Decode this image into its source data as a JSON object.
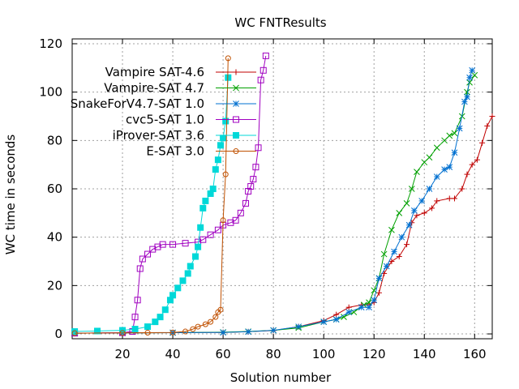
{
  "chart_data": {
    "type": "line",
    "title": "WC FNTResults",
    "xlabel": "Solution number",
    "ylabel": "WC time in seconds",
    "xlim": [
      0,
      167
    ],
    "ylim": [
      -2,
      122
    ],
    "xticks": [
      20,
      40,
      60,
      80,
      100,
      120,
      140,
      160
    ],
    "yticks": [
      0,
      20,
      40,
      60,
      80,
      100,
      120
    ],
    "grid": true,
    "legend_position": "top-left",
    "series": [
      {
        "name": "Vampire SAT-4.6",
        "color": "#c00000",
        "marker": "plus",
        "points": [
          [
            1,
            0.3
          ],
          [
            20,
            0.4
          ],
          [
            40,
            0.5
          ],
          [
            60,
            0.6
          ],
          [
            70,
            0.9
          ],
          [
            80,
            1.4
          ],
          [
            90,
            3
          ],
          [
            100,
            5.5
          ],
          [
            105,
            8
          ],
          [
            110,
            11
          ],
          [
            115,
            12
          ],
          [
            118,
            12
          ],
          [
            120,
            13
          ],
          [
            122,
            17
          ],
          [
            124,
            25
          ],
          [
            127,
            30
          ],
          [
            130,
            32
          ],
          [
            133,
            37
          ],
          [
            135,
            46
          ],
          [
            137,
            49
          ],
          [
            140,
            50
          ],
          [
            143,
            52
          ],
          [
            145,
            55
          ],
          [
            150,
            56
          ],
          [
            152,
            56
          ],
          [
            155,
            60
          ],
          [
            157,
            66
          ],
          [
            159,
            70
          ],
          [
            161,
            72
          ],
          [
            163,
            79
          ],
          [
            165,
            86
          ],
          [
            167,
            90
          ]
        ]
      },
      {
        "name": "Vampire-SAT 4.7",
        "color": "#00a000",
        "marker": "x",
        "points": [
          [
            1,
            0.3
          ],
          [
            20,
            0.4
          ],
          [
            40,
            0.5
          ],
          [
            60,
            0.7
          ],
          [
            70,
            1
          ],
          [
            80,
            1.5
          ],
          [
            90,
            2.5
          ],
          [
            100,
            5
          ],
          [
            105,
            6
          ],
          [
            108,
            7
          ],
          [
            112,
            9
          ],
          [
            116,
            12
          ],
          [
            118,
            13
          ],
          [
            120,
            18
          ],
          [
            122,
            23
          ],
          [
            124,
            33
          ],
          [
            127,
            43
          ],
          [
            130,
            50
          ],
          [
            133,
            54
          ],
          [
            135,
            60
          ],
          [
            137,
            67
          ],
          [
            140,
            71
          ],
          [
            142,
            73
          ],
          [
            145,
            77
          ],
          [
            148,
            80
          ],
          [
            150,
            82
          ],
          [
            152,
            83
          ],
          [
            155,
            90
          ],
          [
            157,
            100
          ],
          [
            158,
            104
          ],
          [
            160,
            107
          ]
        ]
      },
      {
        "name": "SnakeForV4.7-SAT 1.0",
        "color": "#0070d0",
        "marker": "star",
        "points": [
          [
            1,
            0.3
          ],
          [
            20,
            0.4
          ],
          [
            40,
            0.5
          ],
          [
            60,
            0.6
          ],
          [
            70,
            0.9
          ],
          [
            80,
            1.5
          ],
          [
            90,
            3
          ],
          [
            100,
            5
          ],
          [
            105,
            6
          ],
          [
            110,
            9
          ],
          [
            115,
            11
          ],
          [
            118,
            11
          ],
          [
            120,
            14
          ],
          [
            122,
            23
          ],
          [
            125,
            28
          ],
          [
            128,
            34
          ],
          [
            131,
            40
          ],
          [
            134,
            45
          ],
          [
            136,
            51
          ],
          [
            139,
            55
          ],
          [
            142,
            60
          ],
          [
            145,
            65
          ],
          [
            148,
            68
          ],
          [
            150,
            69
          ],
          [
            152,
            75
          ],
          [
            154,
            85
          ],
          [
            156,
            96
          ],
          [
            157,
            98
          ],
          [
            158,
            106
          ],
          [
            159,
            109
          ]
        ]
      },
      {
        "name": "cvc5-SAT 1.0",
        "color": "#a000c0",
        "marker": "square",
        "points": [
          [
            1,
            0.3
          ],
          [
            20,
            0.5
          ],
          [
            24,
            1
          ],
          [
            25,
            7
          ],
          [
            26,
            14
          ],
          [
            27,
            27
          ],
          [
            28,
            31
          ],
          [
            30,
            33
          ],
          [
            32,
            35
          ],
          [
            34,
            36
          ],
          [
            36,
            37
          ],
          [
            40,
            37
          ],
          [
            45,
            37.5
          ],
          [
            50,
            38
          ],
          [
            52,
            39
          ],
          [
            55,
            41
          ],
          [
            58,
            43
          ],
          [
            60,
            45
          ],
          [
            63,
            46
          ],
          [
            65,
            47
          ],
          [
            67,
            50
          ],
          [
            69,
            54
          ],
          [
            70,
            59
          ],
          [
            71,
            61
          ],
          [
            72,
            64
          ],
          [
            73,
            69
          ],
          [
            74,
            77
          ],
          [
            75,
            105
          ],
          [
            76,
            109
          ],
          [
            77,
            115
          ]
        ]
      },
      {
        "name": "iProver-SAT 3.6",
        "color": "#00d8d8",
        "marker": "filled-square",
        "points": [
          [
            1,
            1
          ],
          [
            10,
            1.2
          ],
          [
            20,
            1.5
          ],
          [
            25,
            2
          ],
          [
            30,
            3
          ],
          [
            33,
            5
          ],
          [
            35,
            7
          ],
          [
            37,
            10
          ],
          [
            39,
            14
          ],
          [
            40,
            16
          ],
          [
            42,
            19
          ],
          [
            44,
            22
          ],
          [
            46,
            25
          ],
          [
            47,
            28
          ],
          [
            49,
            32
          ],
          [
            50,
            36
          ],
          [
            51,
            44
          ],
          [
            52,
            52
          ],
          [
            53,
            55
          ],
          [
            55,
            58
          ],
          [
            56,
            60
          ],
          [
            57,
            68
          ],
          [
            58,
            72
          ],
          [
            59,
            78
          ],
          [
            60,
            81
          ],
          [
            61,
            88
          ],
          [
            62,
            106
          ]
        ]
      },
      {
        "name": "E-SAT 3.0",
        "color": "#c05000",
        "marker": "circle",
        "points": [
          [
            1,
            0.3
          ],
          [
            20,
            0.4
          ],
          [
            30,
            0.5
          ],
          [
            40,
            0.6
          ],
          [
            45,
            1
          ],
          [
            48,
            2
          ],
          [
            50,
            3
          ],
          [
            53,
            4
          ],
          [
            55,
            5
          ],
          [
            57,
            7
          ],
          [
            58,
            9
          ],
          [
            59,
            10
          ],
          [
            60,
            47
          ],
          [
            61,
            66
          ],
          [
            62,
            114
          ]
        ]
      }
    ]
  }
}
